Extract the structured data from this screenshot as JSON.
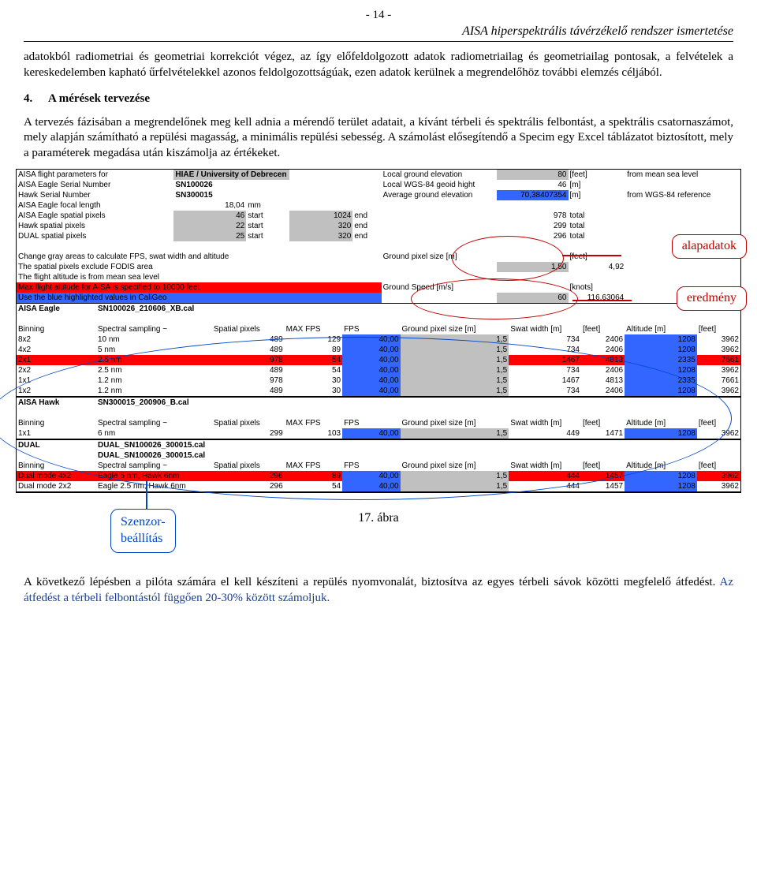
{
  "pageNumber": "- 14 -",
  "headerSubtitle": "AISA hiperspektrális távérzékelő rendszer ismertetése",
  "para1": "adatokból radiometriai és geometriai  korrekciót végez, az így előfeldolgozott adatok radiometriailag és geometriailag pontosak, a felvételek a kereskedelemben kapható űrfelvételekkel azonos feldolgozottságúak, ezen adatok kerülnek a megrendelőhöz további elemzés céljából.",
  "sectionNum": "4.",
  "sectionTitle": "A mérések tervezése",
  "para2": "A tervezés fázisában a megrendelőnek meg kell adnia a mérendő terület adatait, a kívánt térbeli és spektrális felbontást, a spektrális csatornaszámot, mely alapján számítható a repülési magasság, a minimális repülési sebesség. A számolást elősegítendő a Specim egy Excel táblázatot biztosított, mely a paraméterek megadása után kiszámolja az értékeket.",
  "callouts": {
    "alapadatok": "alapadatok",
    "eredmeny": "eredmény",
    "szenzor": "Szenzor-\nbeállítás"
  },
  "caption": "17. ábra",
  "para3_a": "A következő lépésben a pilóta számára el kell készíteni a repülés nyomvonalát, biztosítva az egyes térbeli sávok közötti megfelelő átfedést. ",
  "para3_b": "Az átfedést a térbeli felbontástól függően 20-30% között számoljuk.",
  "excel": {
    "top": {
      "r1": [
        "AISA flight parameters for",
        "HIAE / University of Debrecen",
        "Local ground elevation",
        "80",
        "[feet]",
        "from mean sea level"
      ],
      "r2": [
        "AISA Eagle Serial Number",
        "SN100026",
        "Local WGS-84 geoid hight",
        "46",
        "[m]",
        ""
      ],
      "r3": [
        "Hawk Serial Number",
        "SN300015",
        "Average ground elevation",
        "70,38407354",
        "[m]",
        "from WGS-84 reference"
      ],
      "r4": [
        "AISA Eagle focal length",
        "18,04",
        "mm",
        "",
        "",
        "",
        ""
      ],
      "r5": [
        "AISA Eagle spatial pixels",
        "46",
        "start",
        "1024",
        "end",
        "978",
        "total"
      ],
      "r6": [
        "Hawk spatial pixels",
        "22",
        "start",
        "320",
        "end",
        "299",
        "total"
      ],
      "r7": [
        "DUAL spatial pixels",
        "25",
        "start",
        "320",
        "end",
        "296",
        "total"
      ],
      "notes": [
        "Change gray areas to calculate FPS, swat width and altitude",
        "The spatial pixels exclude FODIS area",
        "The flight altitude is from mean sea level",
        "Max flight altitude for AISA is specified to 10000 feet",
        "Use the blue highlighted values in CaliGeo"
      ],
      "gps": {
        "label": "Ground pixel size [m]",
        "val": "1,50",
        "feet": "[feet]",
        "feetval": "4,92",
        "gsLabel": "Ground Speed [m/s]",
        "gs": "60",
        "knots": "[knots]",
        "kval": "116,63064"
      }
    },
    "eagle": {
      "title": "AISA Eagle",
      "cal": "SN100026_210606_XB.cal",
      "head": [
        "Binning",
        "Spectral sampling ~",
        "Spatial pixels",
        "MAX FPS",
        "FPS",
        "Ground pixel size [m]",
        "Swat width [m]",
        "[feet]",
        "Altitude [m]",
        "[feet]"
      ],
      "rows": [
        [
          "8x2",
          "10 nm",
          "489",
          "129",
          "40,00",
          "1,5",
          "734",
          "2406",
          "1208",
          "3962"
        ],
        [
          "4x2",
          "5 nm",
          "489",
          "89",
          "40,00",
          "1,5",
          "734",
          "2406",
          "1208",
          "3962"
        ],
        [
          "2x1",
          "2.5 nm",
          "978",
          "54",
          "40,00",
          "1,5",
          "1467",
          "4813",
          "2335",
          "7661"
        ],
        [
          "2x2",
          "2.5 nm",
          "489",
          "54",
          "40,00",
          "1,5",
          "734",
          "2406",
          "1208",
          "3962"
        ],
        [
          "1x1",
          "1.2 nm",
          "978",
          "30",
          "40,00",
          "1,5",
          "1467",
          "4813",
          "2335",
          "7661"
        ],
        [
          "1x2",
          "1.2 nm",
          "489",
          "30",
          "40,00",
          "1,5",
          "734",
          "2406",
          "1208",
          "3962"
        ]
      ],
      "redRows": [
        2
      ]
    },
    "hawk": {
      "title": "AISA Hawk",
      "cal": "SN300015_200906_B.cal",
      "head": [
        "Binning",
        "Spectral sampling ~",
        "Spatial pixels",
        "MAX FPS",
        "FPS",
        "Ground pixel size [m]",
        "Swat width [m]",
        "[feet]",
        "Altitude [m]",
        "[feet]"
      ],
      "rows": [
        [
          "1x1",
          "6 nm",
          "299",
          "103",
          "40,00",
          "1,5",
          "449",
          "1471",
          "1208",
          "3962"
        ]
      ]
    },
    "dual": {
      "title": "DUAL",
      "cal": "DUAL_SN100026_300015.cal",
      "cal2": "DUAL_SN100026_300015.cal",
      "head": [
        "Binning",
        "Spectral sampling ~",
        "Spatial pixels",
        "MAX FPS",
        "FPS",
        "Ground pixel size [m]",
        "Swat width [m]",
        "[feet]",
        "Altitude [m]",
        "[feet]"
      ],
      "rows": [
        [
          "Dual mode 4x2",
          "Eagle 5 nm, Hawk 6nm",
          "296",
          "89",
          "40,00",
          "1,5",
          "444",
          "1457",
          "1208",
          "3962"
        ],
        [
          "Dual mode 2x2",
          "Eagle 2.5 nm, Hawk 6nm",
          "296",
          "54",
          "40,00",
          "1,5",
          "444",
          "1457",
          "1208",
          "3962"
        ]
      ],
      "redRows": [
        0
      ]
    }
  }
}
